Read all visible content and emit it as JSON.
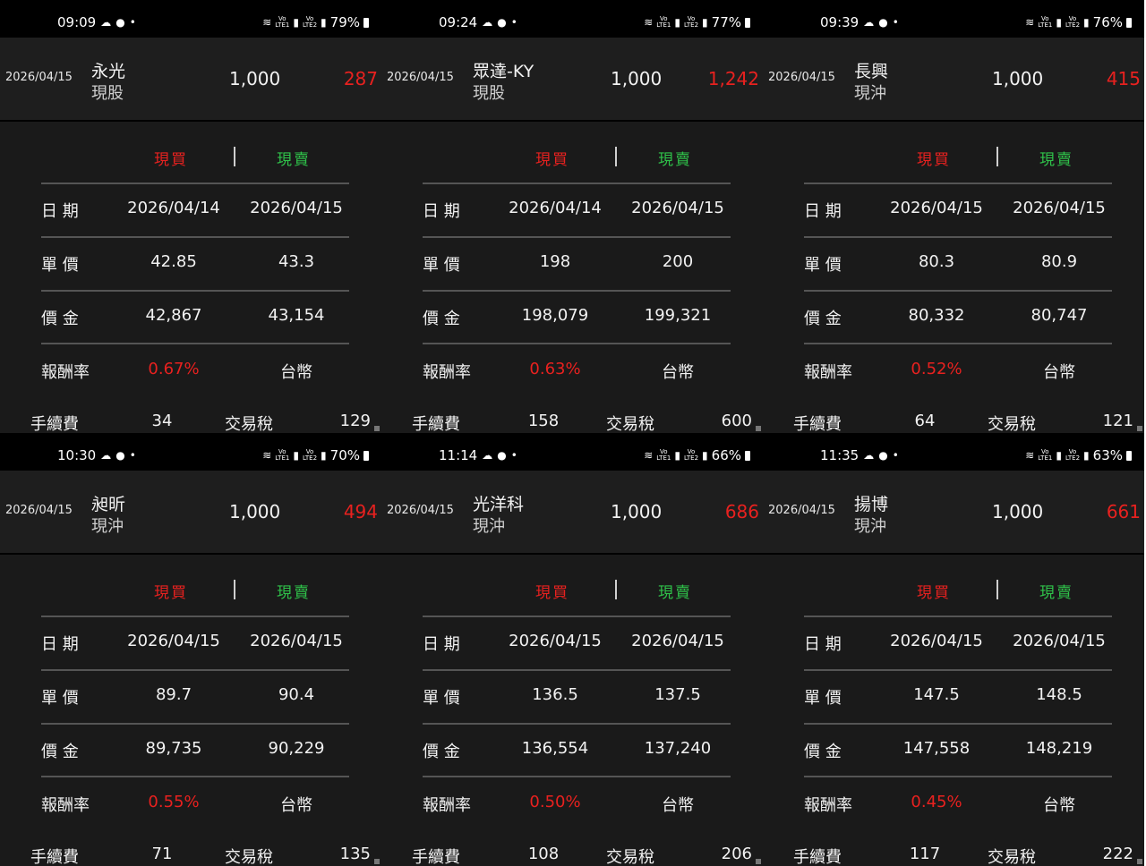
{
  "panels": [
    {
      "status": {
        "time": "09:09",
        "battery": "79%"
      },
      "trade": {
        "date": "2026/04/15",
        "name": "永光",
        "kind": "現股",
        "qty": "1,000",
        "profit": "287"
      },
      "tabs": {
        "buy": "現買",
        "sell": "現賣"
      },
      "rows": [
        {
          "label": "日 期",
          "buy": "2026/04/14",
          "sell": "2026/04/15"
        },
        {
          "label": "單 價",
          "buy": "42.85",
          "sell": "43.3"
        },
        {
          "label": "價 金",
          "buy": "42,867",
          "sell": "43,154"
        },
        {
          "label": "報酬率",
          "buy": "0.67%",
          "sell": "台幣"
        }
      ],
      "fee": {
        "fee_label": "手續費",
        "fee_value": "34",
        "tax_label": "交易稅",
        "tax_value": "129"
      }
    },
    {
      "status": {
        "time": "09:24",
        "battery": "77%"
      },
      "trade": {
        "date": "2026/04/15",
        "name": "眾達-KY",
        "kind": "現股",
        "qty": "1,000",
        "profit": "1,242"
      },
      "tabs": {
        "buy": "現買",
        "sell": "現賣"
      },
      "rows": [
        {
          "label": "日 期",
          "buy": "2026/04/14",
          "sell": "2026/04/15"
        },
        {
          "label": "單 價",
          "buy": "198",
          "sell": "200"
        },
        {
          "label": "價 金",
          "buy": "198,079",
          "sell": "199,321"
        },
        {
          "label": "報酬率",
          "buy": "0.63%",
          "sell": "台幣"
        }
      ],
      "fee": {
        "fee_label": "手續費",
        "fee_value": "158",
        "tax_label": "交易稅",
        "tax_value": "600"
      }
    },
    {
      "status": {
        "time": "09:39",
        "battery": "76%"
      },
      "trade": {
        "date": "2026/04/15",
        "name": "長興",
        "kind": "現沖",
        "qty": "1,000",
        "profit": "415"
      },
      "tabs": {
        "buy": "現買",
        "sell": "現賣"
      },
      "rows": [
        {
          "label": "日 期",
          "buy": "2026/04/15",
          "sell": "2026/04/15"
        },
        {
          "label": "單 價",
          "buy": "80.3",
          "sell": "80.9"
        },
        {
          "label": "價 金",
          "buy": "80,332",
          "sell": "80,747"
        },
        {
          "label": "報酬率",
          "buy": "0.52%",
          "sell": "台幣"
        }
      ],
      "fee": {
        "fee_label": "手續費",
        "fee_value": "64",
        "tax_label": "交易稅",
        "tax_value": "121"
      }
    },
    {
      "status": {
        "time": "10:30",
        "battery": "70%"
      },
      "trade": {
        "date": "2026/04/15",
        "name": "昶昕",
        "kind": "現沖",
        "qty": "1,000",
        "profit": "494"
      },
      "tabs": {
        "buy": "現買",
        "sell": "現賣"
      },
      "rows": [
        {
          "label": "日 期",
          "buy": "2026/04/15",
          "sell": "2026/04/15"
        },
        {
          "label": "單 價",
          "buy": "89.7",
          "sell": "90.4"
        },
        {
          "label": "價 金",
          "buy": "89,735",
          "sell": "90,229"
        },
        {
          "label": "報酬率",
          "buy": "0.55%",
          "sell": "台幣"
        }
      ],
      "fee": {
        "fee_label": "手續費",
        "fee_value": "71",
        "tax_label": "交易稅",
        "tax_value": "135"
      }
    },
    {
      "status": {
        "time": "11:14",
        "battery": "66%"
      },
      "trade": {
        "date": "2026/04/15",
        "name": "光洋科",
        "kind": "現沖",
        "qty": "1,000",
        "profit": "686"
      },
      "tabs": {
        "buy": "現買",
        "sell": "現賣"
      },
      "rows": [
        {
          "label": "日 期",
          "buy": "2026/04/15",
          "sell": "2026/04/15"
        },
        {
          "label": "單 價",
          "buy": "136.5",
          "sell": "137.5"
        },
        {
          "label": "價 金",
          "buy": "136,554",
          "sell": "137,240"
        },
        {
          "label": "報酬率",
          "buy": "0.50%",
          "sell": "台幣"
        }
      ],
      "fee": {
        "fee_label": "手續費",
        "fee_value": "108",
        "tax_label": "交易稅",
        "tax_value": "206"
      }
    },
    {
      "status": {
        "time": "11:35",
        "battery": "63%"
      },
      "trade": {
        "date": "2026/04/15",
        "name": "揚博",
        "kind": "現沖",
        "qty": "1,000",
        "profit": "661"
      },
      "tabs": {
        "buy": "現買",
        "sell": "現賣"
      },
      "rows": [
        {
          "label": "日 期",
          "buy": "2026/04/15",
          "sell": "2026/04/15"
        },
        {
          "label": "單 價",
          "buy": "147.5",
          "sell": "148.5"
        },
        {
          "label": "價 金",
          "buy": "147,558",
          "sell": "148,219"
        },
        {
          "label": "報酬率",
          "buy": "0.45%",
          "sell": "台幣"
        }
      ],
      "fee": {
        "fee_label": "手續費",
        "fee_value": "117",
        "tax_label": "交易稅",
        "tax_value": "222"
      }
    }
  ],
  "colors": {
    "profit": "#e8211f",
    "buy": "#e8211f",
    "sell": "#2fc24a",
    "background": "#1a1a1a"
  },
  "status_icons": [
    "cloud-icon",
    "chat-icon",
    "wifi-icon",
    "volte-icon",
    "signal-icon",
    "battery-icon"
  ]
}
